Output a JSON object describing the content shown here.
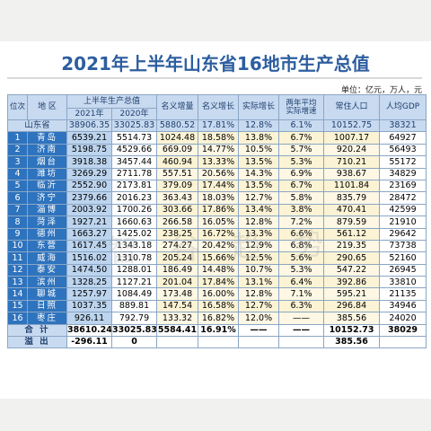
{
  "title": "2021年上半年山东省16地市生产总值",
  "unit": "单位：亿元，万人，元",
  "headers": {
    "rank": "位次",
    "region": "地 区",
    "gdp_total": "上半年生产总值",
    "y2021": "2021年",
    "y2020": "2020年",
    "nominal_increase": "名义增量",
    "nominal_growth": "名义增长",
    "real_growth": "实际增长",
    "two_year_avg_1": "两年平均",
    "two_year_avg_2": "实际增速",
    "population": "常住人口",
    "per_capita": "人均GDP"
  },
  "province": {
    "name": "山东省",
    "y2021": "38906.35",
    "y2020": "33025.83",
    "increase": "5880.52",
    "nominal": "17.81%",
    "real": "12.8%",
    "two_year": "6.1%",
    "population": "10152.75",
    "per_capita": "38321"
  },
  "rows": [
    {
      "rank": "1",
      "city": "青岛",
      "y2021": "6539.21",
      "y2020": "5514.73",
      "increase": "1024.48",
      "nominal": "18.58%",
      "real": "13.8%",
      "two_year": "6.7%",
      "population": "1007.17",
      "per_capita": "64927"
    },
    {
      "rank": "2",
      "city": "济南",
      "y2021": "5198.75",
      "y2020": "4529.66",
      "increase": "669.09",
      "nominal": "14.77%",
      "real": "10.5%",
      "two_year": "5.7%",
      "population": "920.24",
      "per_capita": "56493"
    },
    {
      "rank": "3",
      "city": "烟台",
      "y2021": "3918.38",
      "y2020": "3457.44",
      "increase": "460.94",
      "nominal": "13.33%",
      "real": "13.5%",
      "two_year": "5.3%",
      "population": "710.21",
      "per_capita": "55172"
    },
    {
      "rank": "4",
      "city": "潍坊",
      "y2021": "3269.29",
      "y2020": "2711.78",
      "increase": "557.51",
      "nominal": "20.56%",
      "real": "14.3%",
      "two_year": "6.9%",
      "population": "938.67",
      "per_capita": "34829"
    },
    {
      "rank": "5",
      "city": "临沂",
      "y2021": "2552.90",
      "y2020": "2173.81",
      "increase": "379.09",
      "nominal": "17.44%",
      "real": "13.5%",
      "two_year": "6.7%",
      "population": "1101.84",
      "per_capita": "23169"
    },
    {
      "rank": "6",
      "city": "济宁",
      "y2021": "2379.66",
      "y2020": "2016.23",
      "increase": "363.43",
      "nominal": "18.03%",
      "real": "12.7%",
      "two_year": "5.8%",
      "population": "835.79",
      "per_capita": "28472"
    },
    {
      "rank": "7",
      "city": "淄博",
      "y2021": "2003.92",
      "y2020": "1700.26",
      "increase": "303.66",
      "nominal": "17.86%",
      "real": "13.4%",
      "two_year": "3.8%",
      "population": "470.41",
      "per_capita": "42599"
    },
    {
      "rank": "8",
      "city": "菏泽",
      "y2021": "1927.21",
      "y2020": "1660.63",
      "increase": "266.58",
      "nominal": "16.05%",
      "real": "12.8%",
      "two_year": "7.2%",
      "population": "879.59",
      "per_capita": "21910"
    },
    {
      "rank": "9",
      "city": "德州",
      "y2021": "1663.27",
      "y2020": "1425.02",
      "increase": "238.25",
      "nominal": "16.72%",
      "real": "13.3%",
      "two_year": "6.6%",
      "population": "561.12",
      "per_capita": "29642"
    },
    {
      "rank": "10",
      "city": "东营",
      "y2021": "1617.45",
      "y2020": "1343.18",
      "increase": "274.27",
      "nominal": "20.42%",
      "real": "12.9%",
      "two_year": "6.8%",
      "population": "219.35",
      "per_capita": "73738"
    },
    {
      "rank": "11",
      "city": "威海",
      "y2021": "1516.02",
      "y2020": "1310.78",
      "increase": "205.24",
      "nominal": "15.66%",
      "real": "12.5%",
      "two_year": "5.6%",
      "population": "290.65",
      "per_capita": "52160"
    },
    {
      "rank": "12",
      "city": "泰安",
      "y2021": "1474.50",
      "y2020": "1288.01",
      "increase": "186.49",
      "nominal": "14.48%",
      "real": "10.7%",
      "two_year": "5.3%",
      "population": "547.22",
      "per_capita": "26945"
    },
    {
      "rank": "13",
      "city": "滨州",
      "y2021": "1328.25",
      "y2020": "1127.21",
      "increase": "201.04",
      "nominal": "17.84%",
      "real": "13.1%",
      "two_year": "6.4%",
      "population": "392.86",
      "per_capita": "33810"
    },
    {
      "rank": "14",
      "city": "聊城",
      "y2021": "1257.97",
      "y2020": "1084.49",
      "increase": "173.48",
      "nominal": "16.00%",
      "real": "12.8%",
      "two_year": "7.1%",
      "population": "595.21",
      "per_capita": "21135"
    },
    {
      "rank": "15",
      "city": "日照",
      "y2021": "1037.35",
      "y2020": "889.81",
      "increase": "147.54",
      "nominal": "16.58%",
      "real": "12.7%",
      "two_year": "6.3%",
      "population": "296.84",
      "per_capita": "34946"
    },
    {
      "rank": "16",
      "city": "枣庄",
      "y2021": "926.11",
      "y2020": "792.79",
      "increase": "133.32",
      "nominal": "16.82%",
      "real": "12.0%",
      "two_year": "——",
      "population": "385.56",
      "per_capita": "24020"
    }
  ],
  "total": {
    "label": "合 计",
    "y2021": "38610.24",
    "y2020": "33025.83",
    "increase": "5584.41",
    "nominal": "16.91%",
    "real": "——",
    "two_year": "——",
    "population": "10152.73",
    "per_capita": "38029"
  },
  "overflow": {
    "label": "溢 出",
    "y2021": "-296.11",
    "y2020": "0",
    "increase": "",
    "nominal": "",
    "real": "",
    "two_year": "",
    "population": "385.56",
    "per_capita": ""
  },
  "watermark": "智 谷 趋 势"
}
